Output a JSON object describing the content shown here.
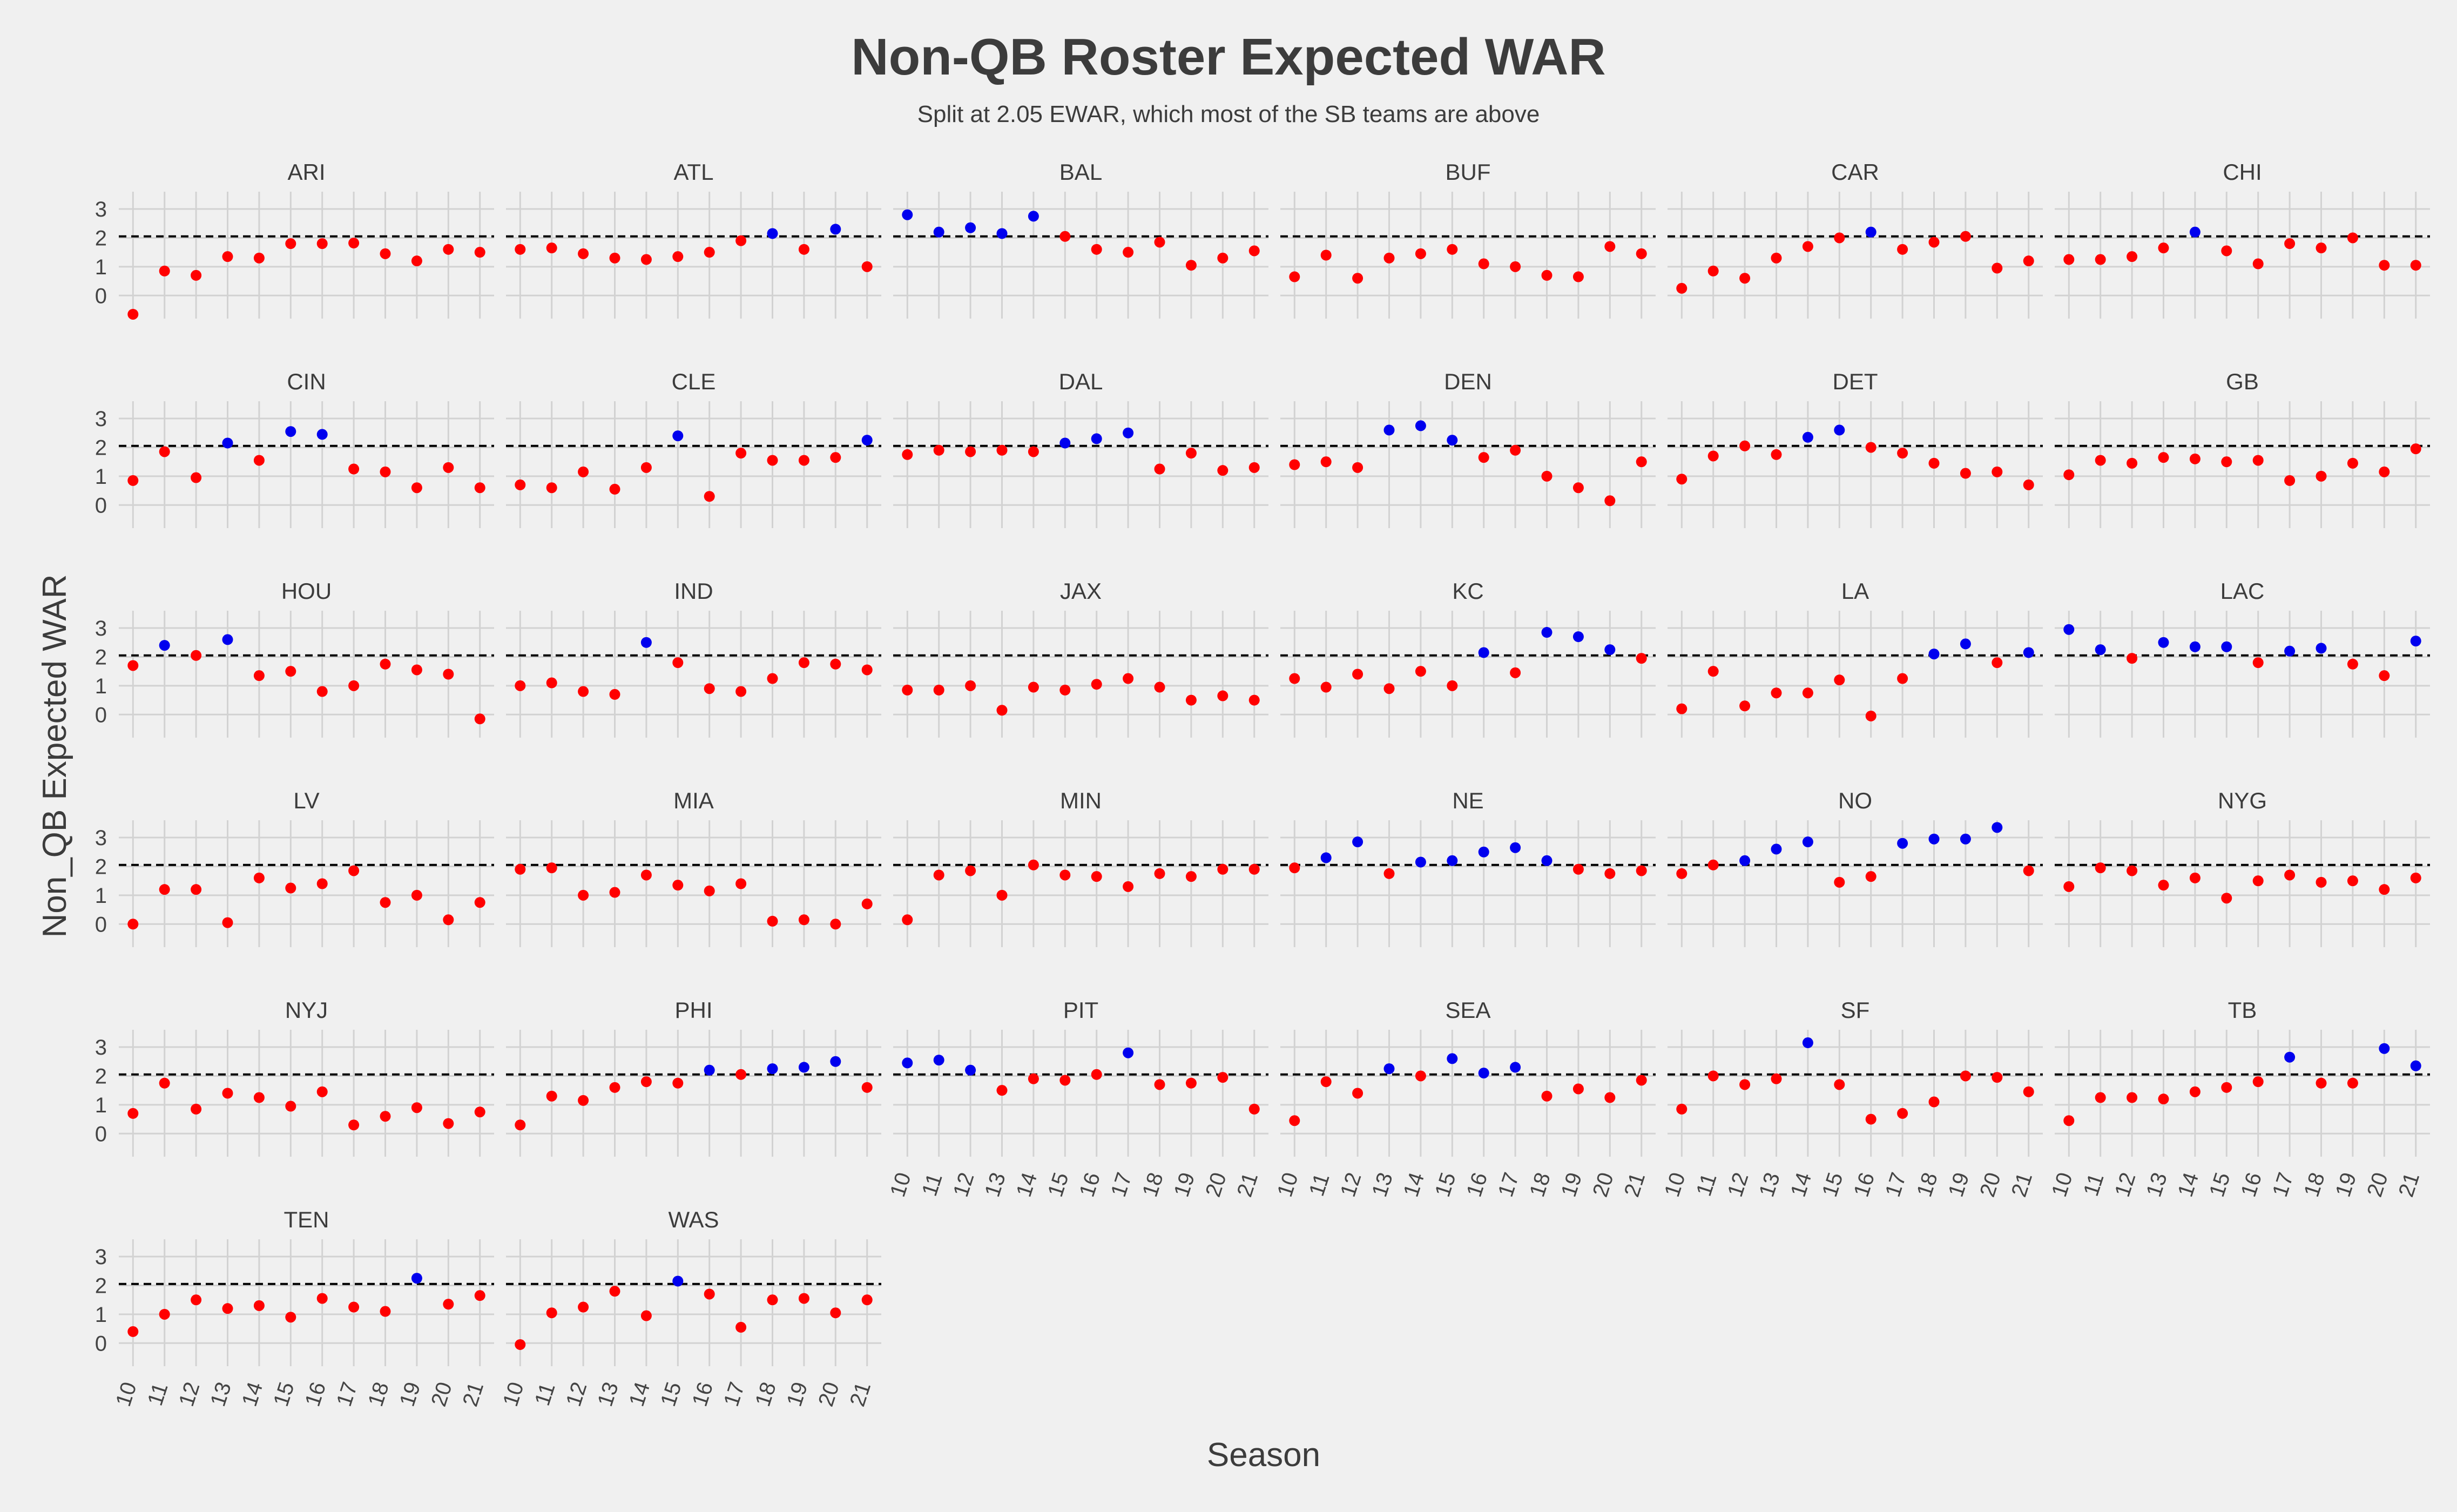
{
  "chart_data": {
    "type": "scatter",
    "title": "Non-QB Roster Expected WAR",
    "subtitle": "Split at 2.05 EWAR, which most of the SB teams are above",
    "xlabel": "Season",
    "ylabel": "Non_QB Expected WAR",
    "x": [
      10,
      11,
      12,
      13,
      14,
      15,
      16,
      17,
      18,
      19,
      20,
      21
    ],
    "x_tick_labels": [
      "10",
      "11",
      "12",
      "13",
      "14",
      "15",
      "16",
      "17",
      "18",
      "19",
      "20",
      "21"
    ],
    "y_ticks": [
      0,
      1,
      2,
      3
    ],
    "ylim": [
      -0.8,
      3.6
    ],
    "threshold": 2.05,
    "grid": true,
    "facet_layout": {
      "ncol": 6,
      "nrow": 6
    },
    "colors": {
      "above": "#0000ee",
      "below": "#ff0000",
      "background": "#f0f0f0",
      "grid": "#d2d2d2",
      "threshold_line": "#000000"
    },
    "teams": [
      {
        "team": "ARI",
        "values": [
          -0.65,
          0.85,
          0.7,
          1.35,
          1.3,
          1.8,
          1.8,
          1.82,
          1.45,
          1.2,
          1.6,
          1.5
        ]
      },
      {
        "team": "ATL",
        "values": [
          1.6,
          1.65,
          1.45,
          1.3,
          1.25,
          1.35,
          1.5,
          1.9,
          2.15,
          1.6,
          2.3,
          1.0
        ]
      },
      {
        "team": "BAL",
        "values": [
          2.8,
          2.2,
          2.35,
          2.15,
          2.75,
          2.05,
          1.6,
          1.5,
          1.85,
          1.05,
          1.3,
          1.55
        ]
      },
      {
        "team": "BUF",
        "values": [
          0.65,
          1.4,
          0.6,
          1.3,
          1.45,
          1.6,
          1.1,
          1.0,
          0.7,
          0.65,
          1.7,
          1.45
        ]
      },
      {
        "team": "CAR",
        "values": [
          0.25,
          0.85,
          0.6,
          1.3,
          1.7,
          2.0,
          2.2,
          1.6,
          1.85,
          2.05,
          0.95,
          1.2
        ]
      },
      {
        "team": "CHI",
        "values": [
          1.25,
          1.25,
          1.35,
          1.65,
          2.2,
          1.55,
          1.1,
          1.8,
          1.65,
          2.0,
          1.05,
          1.05
        ]
      },
      {
        "team": "CIN",
        "values": [
          0.85,
          1.85,
          0.95,
          2.15,
          1.55,
          2.55,
          2.45,
          1.25,
          1.15,
          0.6,
          1.3,
          0.6
        ]
      },
      {
        "team": "CLE",
        "values": [
          0.7,
          0.6,
          1.15,
          0.55,
          1.3,
          2.4,
          0.3,
          1.8,
          1.55,
          1.55,
          1.65,
          2.25
        ]
      },
      {
        "team": "DAL",
        "values": [
          1.75,
          1.9,
          1.85,
          1.9,
          1.85,
          2.15,
          2.3,
          2.5,
          1.25,
          1.8,
          1.2,
          1.3
        ]
      },
      {
        "team": "DEN",
        "values": [
          1.4,
          1.5,
          1.3,
          2.6,
          2.75,
          2.25,
          1.65,
          1.9,
          1.0,
          0.6,
          0.15,
          1.5
        ]
      },
      {
        "team": "DET",
        "values": [
          0.9,
          1.7,
          2.05,
          1.75,
          2.35,
          2.6,
          2.0,
          1.8,
          1.45,
          1.1,
          1.15,
          0.7
        ]
      },
      {
        "team": "GB",
        "values": [
          1.05,
          1.55,
          1.45,
          1.65,
          1.6,
          1.5,
          1.55,
          0.85,
          1.0,
          1.45,
          1.15,
          1.95
        ]
      },
      {
        "team": "HOU",
        "values": [
          1.7,
          2.4,
          2.05,
          2.6,
          1.35,
          1.5,
          0.8,
          1.0,
          1.75,
          1.55,
          1.4,
          -0.15
        ]
      },
      {
        "team": "IND",
        "values": [
          1.0,
          1.1,
          0.8,
          0.7,
          2.5,
          1.8,
          0.9,
          0.8,
          1.25,
          1.8,
          1.75,
          1.55
        ]
      },
      {
        "team": "JAX",
        "values": [
          0.85,
          0.85,
          1.0,
          0.15,
          0.95,
          0.85,
          1.05,
          1.25,
          0.95,
          0.5,
          0.65,
          0.5
        ]
      },
      {
        "team": "KC",
        "values": [
          1.25,
          0.95,
          1.4,
          0.9,
          1.5,
          1.0,
          2.15,
          1.45,
          2.85,
          2.7,
          2.25,
          1.95
        ]
      },
      {
        "team": "LA",
        "values": [
          0.2,
          1.5,
          0.3,
          0.75,
          0.75,
          1.2,
          -0.05,
          1.25,
          2.1,
          2.45,
          1.8,
          2.15
        ]
      },
      {
        "team": "LAC",
        "values": [
          2.95,
          2.25,
          1.95,
          2.5,
          2.35,
          2.35,
          1.8,
          2.2,
          2.3,
          1.75,
          1.35,
          2.55
        ]
      },
      {
        "team": "LV",
        "values": [
          0.0,
          1.2,
          1.2,
          0.05,
          1.6,
          1.25,
          1.4,
          1.85,
          0.75,
          1.0,
          0.15,
          0.75
        ]
      },
      {
        "team": "MIA",
        "values": [
          1.9,
          1.95,
          1.0,
          1.1,
          1.7,
          1.35,
          1.15,
          1.4,
          0.1,
          0.15,
          0.0,
          0.7
        ]
      },
      {
        "team": "MIN",
        "values": [
          0.15,
          1.7,
          1.85,
          1.0,
          2.05,
          1.7,
          1.65,
          1.3,
          1.75,
          1.65,
          1.9,
          1.9
        ]
      },
      {
        "team": "NE",
        "values": [
          1.95,
          2.3,
          2.85,
          1.75,
          2.15,
          2.2,
          2.5,
          2.65,
          2.2,
          1.9,
          1.75,
          1.85
        ]
      },
      {
        "team": "NO",
        "values": [
          1.75,
          2.05,
          2.2,
          2.6,
          2.85,
          1.45,
          1.65,
          2.8,
          2.95,
          2.95,
          3.35,
          1.85
        ]
      },
      {
        "team": "NYG",
        "values": [
          1.3,
          1.95,
          1.85,
          1.35,
          1.6,
          0.9,
          1.5,
          1.7,
          1.45,
          1.5,
          1.2,
          1.6
        ]
      },
      {
        "team": "NYJ",
        "values": [
          0.7,
          1.75,
          0.85,
          1.4,
          1.25,
          0.95,
          1.45,
          0.3,
          0.6,
          0.9,
          0.35,
          0.75
        ]
      },
      {
        "team": "PHI",
        "values": [
          0.3,
          1.3,
          1.15,
          1.6,
          1.8,
          1.75,
          2.2,
          2.05,
          2.25,
          2.3,
          2.5,
          1.6
        ]
      },
      {
        "team": "PIT",
        "values": [
          2.45,
          2.55,
          2.2,
          1.5,
          1.9,
          1.85,
          2.05,
          2.8,
          1.7,
          1.75,
          1.95,
          0.85
        ]
      },
      {
        "team": "SEA",
        "values": [
          0.45,
          1.8,
          1.4,
          2.25,
          2.0,
          2.6,
          2.1,
          2.3,
          1.3,
          1.55,
          1.25,
          1.85
        ]
      },
      {
        "team": "SF",
        "values": [
          0.85,
          2.0,
          1.7,
          1.9,
          3.15,
          1.7,
          0.5,
          0.7,
          1.1,
          2.0,
          1.95,
          1.45
        ]
      },
      {
        "team": "TB",
        "values": [
          0.45,
          1.25,
          1.25,
          1.2,
          1.45,
          1.6,
          1.8,
          2.65,
          1.75,
          1.75,
          2.95,
          2.35
        ]
      },
      {
        "team": "TEN",
        "values": [
          0.4,
          1.0,
          1.5,
          1.2,
          1.3,
          0.9,
          1.55,
          1.25,
          1.1,
          2.25,
          1.35,
          1.65
        ]
      },
      {
        "team": "WAS",
        "values": [
          -0.05,
          1.05,
          1.25,
          1.8,
          0.95,
          2.15,
          1.7,
          0.55,
          1.5,
          1.55,
          1.05,
          1.5
        ]
      }
    ]
  }
}
